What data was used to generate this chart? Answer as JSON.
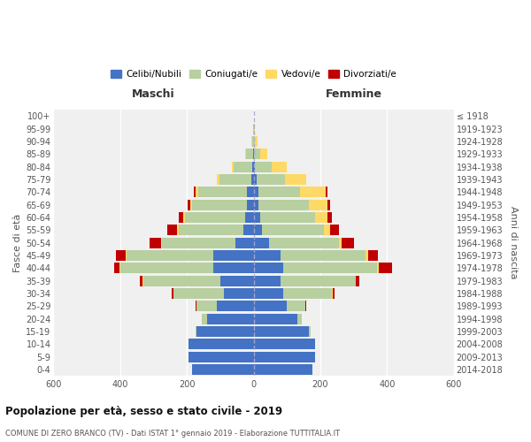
{
  "age_groups": [
    "0-4",
    "5-9",
    "10-14",
    "15-19",
    "20-24",
    "25-29",
    "30-34",
    "35-39",
    "40-44",
    "45-49",
    "50-54",
    "55-59",
    "60-64",
    "65-69",
    "70-74",
    "75-79",
    "80-84",
    "85-89",
    "90-94",
    "95-99",
    "100+"
  ],
  "birth_years": [
    "2014-2018",
    "2009-2013",
    "2004-2008",
    "1999-2003",
    "1994-1998",
    "1989-1993",
    "1984-1988",
    "1979-1983",
    "1974-1978",
    "1969-1973",
    "1964-1968",
    "1959-1963",
    "1954-1958",
    "1949-1953",
    "1944-1948",
    "1939-1943",
    "1934-1938",
    "1929-1933",
    "1924-1928",
    "1919-1923",
    "≤ 1918"
  ],
  "maschi": {
    "celibi": [
      185,
      195,
      195,
      170,
      140,
      110,
      90,
      100,
      120,
      120,
      55,
      30,
      25,
      20,
      20,
      8,
      5,
      2,
      0,
      0,
      0
    ],
    "coniugati": [
      0,
      0,
      0,
      5,
      15,
      60,
      150,
      230,
      280,
      260,
      220,
      195,
      180,
      165,
      145,
      95,
      55,
      20,
      5,
      1,
      0
    ],
    "vedovi": [
      0,
      0,
      0,
      0,
      0,
      1,
      1,
      2,
      3,
      3,
      3,
      5,
      5,
      5,
      8,
      8,
      5,
      3,
      2,
      0,
      0
    ],
    "divorziati": [
      0,
      0,
      0,
      0,
      0,
      3,
      5,
      10,
      15,
      30,
      35,
      30,
      15,
      8,
      5,
      0,
      0,
      0,
      0,
      0,
      0
    ]
  },
  "femmine": {
    "nubili": [
      175,
      185,
      185,
      165,
      130,
      100,
      90,
      80,
      90,
      80,
      45,
      25,
      20,
      15,
      15,
      8,
      5,
      2,
      0,
      0,
      0
    ],
    "coniugate": [
      0,
      0,
      0,
      5,
      15,
      55,
      145,
      225,
      280,
      255,
      210,
      185,
      165,
      150,
      125,
      85,
      48,
      18,
      5,
      1,
      0
    ],
    "vedove": [
      0,
      0,
      0,
      0,
      0,
      1,
      2,
      2,
      5,
      8,
      10,
      20,
      35,
      55,
      75,
      65,
      45,
      20,
      8,
      2,
      0
    ],
    "divorziate": [
      0,
      0,
      0,
      0,
      0,
      2,
      5,
      10,
      40,
      30,
      35,
      25,
      15,
      8,
      5,
      0,
      0,
      0,
      0,
      0,
      0
    ]
  },
  "colors": {
    "celibi": "#4472c4",
    "coniugati": "#b8cfa0",
    "vedovi": "#ffd966",
    "divorziati": "#c00000"
  },
  "legend_labels": [
    "Celibi/Nubili",
    "Coniugati/e",
    "Vedovi/e",
    "Divorziati/e"
  ],
  "legend_colors": [
    "#4472c4",
    "#b8cfa0",
    "#ffd966",
    "#c00000"
  ],
  "title": "Popolazione per età, sesso e stato civile - 2019",
  "subtitle": "COMUNE DI ZERO BRANCO (TV) - Dati ISTAT 1° gennaio 2019 - Elaborazione TUTTITALIA.IT",
  "label_maschi": "Maschi",
  "label_femmine": "Femmine",
  "ylabel_left": "Fasce di età",
  "ylabel_right": "Anni di nascita",
  "xlim": 600,
  "bg_color": "#f0f0f0",
  "grid_color": "#ffffff",
  "bar_height": 0.85
}
